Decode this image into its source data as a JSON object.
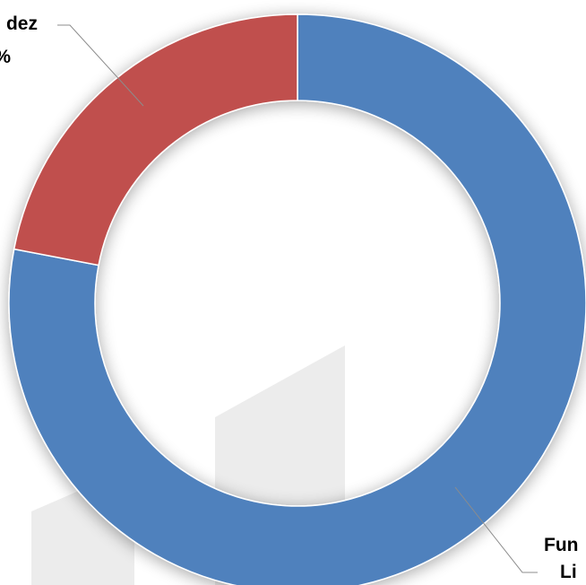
{
  "chart_data": {
    "type": "donut",
    "categories": [
      [
        "Fun",
        "Li"
      ],
      [
        "dez",
        "%"
      ]
    ],
    "values": [
      78,
      22
    ],
    "colors": [
      "#4f81bd",
      "#c0504d"
    ]
  }
}
